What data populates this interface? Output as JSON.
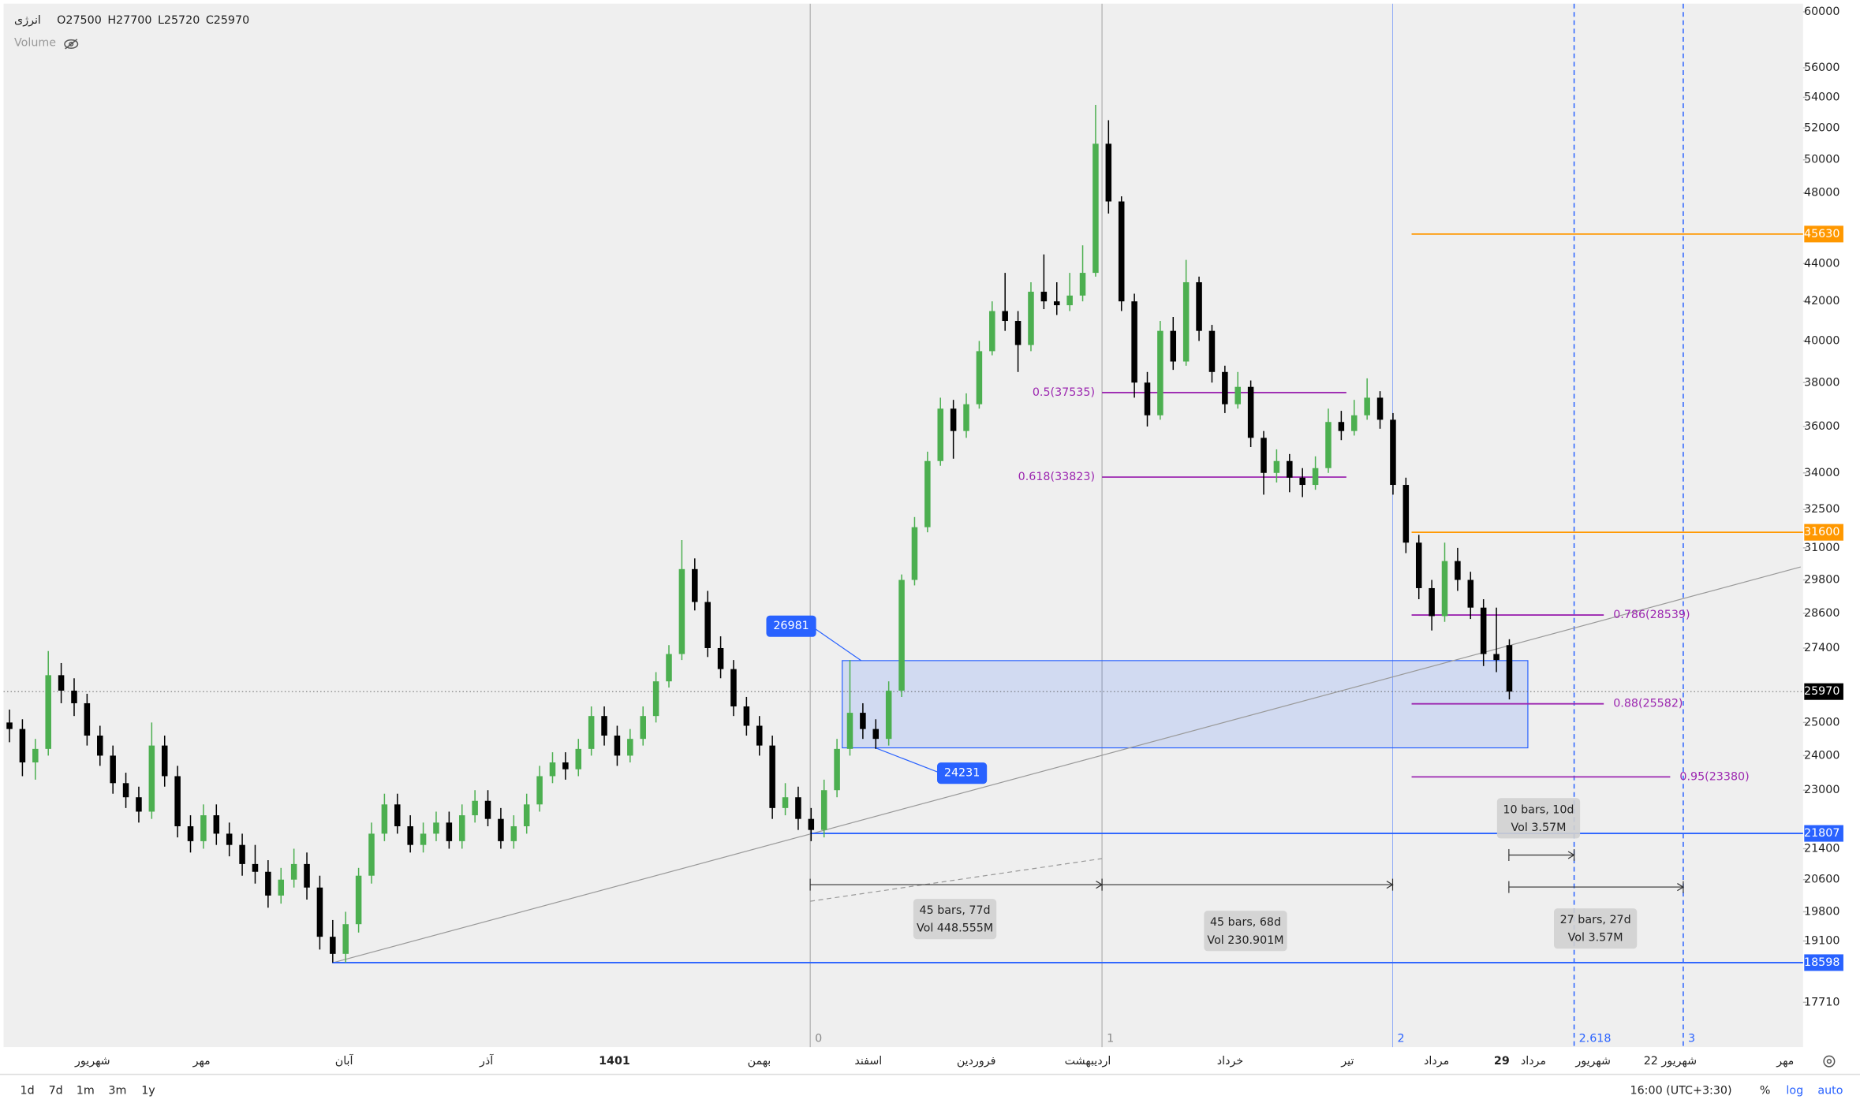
{
  "header": {
    "symbol": "انرژی",
    "ohlc": [
      "O27500",
      "H27700",
      "L25720",
      "C25970"
    ],
    "volume": "Volume"
  },
  "chart_data": {
    "type": "candlestick",
    "log_scale": true,
    "ylim": [
      16760,
      60600
    ],
    "yticks": [
      60000,
      56000,
      54000,
      52000,
      50000,
      48000,
      44000,
      42000,
      40000,
      38000,
      36000,
      34000,
      32500,
      31000,
      29800,
      28600,
      27400,
      25000,
      24000,
      23000,
      21400,
      20600,
      19800,
      19100,
      17710
    ],
    "up_color": "#4caf50",
    "down_color": "#000000",
    "candles": [
      [
        25000,
        25400,
        24400,
        24800
      ],
      [
        24800,
        25100,
        23400,
        23800
      ],
      [
        23800,
        24500,
        23300,
        24200
      ],
      [
        24200,
        27300,
        24000,
        26500
      ],
      [
        26500,
        26900,
        25600,
        26000
      ],
      [
        26000,
        26400,
        25200,
        25600
      ],
      [
        25600,
        25900,
        24300,
        24600
      ],
      [
        24600,
        24900,
        23700,
        24000
      ],
      [
        24000,
        24300,
        22900,
        23200
      ],
      [
        23200,
        23500,
        22500,
        22800
      ],
      [
        22800,
        23100,
        22100,
        22400
      ],
      [
        22400,
        25000,
        22200,
        24300
      ],
      [
        24300,
        24600,
        23100,
        23400
      ],
      [
        23400,
        23700,
        21700,
        22000
      ],
      [
        22000,
        22300,
        21300,
        21600
      ],
      [
        21600,
        22600,
        21400,
        22300
      ],
      [
        22300,
        22600,
        21500,
        21800
      ],
      [
        21800,
        22100,
        21200,
        21500
      ],
      [
        21500,
        21800,
        20700,
        21000
      ],
      [
        21000,
        21500,
        20500,
        20800
      ],
      [
        20800,
        21100,
        19900,
        20200
      ],
      [
        20200,
        20900,
        20000,
        20600
      ],
      [
        20600,
        21400,
        20400,
        21000
      ],
      [
        21000,
        21300,
        20100,
        20400
      ],
      [
        20400,
        20700,
        18900,
        19200
      ],
      [
        19200,
        19600,
        18600,
        18800
      ],
      [
        18800,
        19800,
        18600,
        19500
      ],
      [
        19500,
        20900,
        19300,
        20700
      ],
      [
        20700,
        22100,
        20500,
        21800
      ],
      [
        21800,
        22900,
        21600,
        22600
      ],
      [
        22600,
        22900,
        21800,
        22000
      ],
      [
        22000,
        22300,
        21300,
        21500
      ],
      [
        21500,
        22100,
        21300,
        21800
      ],
      [
        21800,
        22400,
        21600,
        22100
      ],
      [
        22100,
        22400,
        21400,
        21600
      ],
      [
        21600,
        22600,
        21400,
        22300
      ],
      [
        22300,
        23000,
        22100,
        22700
      ],
      [
        22700,
        23000,
        22000,
        22200
      ],
      [
        22200,
        22500,
        21400,
        21600
      ],
      [
        21600,
        22300,
        21400,
        22000
      ],
      [
        22000,
        22900,
        21800,
        22600
      ],
      [
        22600,
        23700,
        22400,
        23400
      ],
      [
        23400,
        24100,
        23200,
        23800
      ],
      [
        23800,
        24100,
        23300,
        23600
      ],
      [
        23600,
        24500,
        23400,
        24200
      ],
      [
        24200,
        25500,
        24000,
        25200
      ],
      [
        25200,
        25500,
        24300,
        24600
      ],
      [
        24600,
        24900,
        23700,
        24000
      ],
      [
        24000,
        24800,
        23800,
        24500
      ],
      [
        24500,
        25500,
        24300,
        25200
      ],
      [
        25200,
        26600,
        25000,
        26300
      ],
      [
        26300,
        27500,
        26100,
        27200
      ],
      [
        27200,
        31300,
        27000,
        30200
      ],
      [
        30200,
        30600,
        28700,
        29000
      ],
      [
        29000,
        29400,
        27100,
        27400
      ],
      [
        27400,
        27800,
        26400,
        26700
      ],
      [
        26700,
        27000,
        25200,
        25500
      ],
      [
        25500,
        25800,
        24600,
        24900
      ],
      [
        24900,
        25200,
        24000,
        24300
      ],
      [
        24300,
        24600,
        22200,
        22500
      ],
      [
        22500,
        23200,
        22300,
        22800
      ],
      [
        22800,
        23100,
        21900,
        22200
      ],
      [
        22200,
        22500,
        21600,
        21900
      ],
      [
        21900,
        23300,
        21700,
        23000
      ],
      [
        23000,
        24500,
        22800,
        24200
      ],
      [
        24200,
        27000,
        24000,
        25300
      ],
      [
        25300,
        25600,
        24500,
        24800
      ],
      [
        24800,
        25100,
        24200,
        24500
      ],
      [
        24500,
        26300,
        24300,
        26000
      ],
      [
        26000,
        30000,
        25800,
        29800
      ],
      [
        29800,
        32200,
        29600,
        31800
      ],
      [
        31800,
        34900,
        31600,
        34500
      ],
      [
        34500,
        37300,
        34300,
        36800
      ],
      [
        36800,
        37200,
        34600,
        35800
      ],
      [
        35800,
        37500,
        35500,
        37000
      ],
      [
        37000,
        40000,
        36800,
        39500
      ],
      [
        39500,
        42000,
        39300,
        41500
      ],
      [
        41500,
        43500,
        40500,
        41000
      ],
      [
        41000,
        41500,
        38500,
        39800
      ],
      [
        39800,
        43000,
        39500,
        42500
      ],
      [
        42500,
        44500,
        41600,
        42000
      ],
      [
        42000,
        43000,
        41300,
        41800
      ],
      [
        41800,
        43500,
        41500,
        42300
      ],
      [
        42300,
        45000,
        42000,
        43500
      ],
      [
        43500,
        53500,
        43300,
        51000
      ],
      [
        51000,
        52500,
        46800,
        47500
      ],
      [
        47500,
        47800,
        41500,
        42000
      ],
      [
        42000,
        42400,
        37300,
        38000
      ],
      [
        38000,
        38500,
        36000,
        36500
      ],
      [
        36500,
        41000,
        36300,
        40500
      ],
      [
        40500,
        41200,
        38600,
        39000
      ],
      [
        39000,
        44200,
        38800,
        43000
      ],
      [
        43000,
        43300,
        40000,
        40500
      ],
      [
        40500,
        40800,
        38000,
        38500
      ],
      [
        38500,
        38800,
        36600,
        37000
      ],
      [
        37000,
        38500,
        36800,
        37800
      ],
      [
        37800,
        38100,
        35100,
        35500
      ],
      [
        35500,
        35800,
        33100,
        34000
      ],
      [
        34000,
        35000,
        33600,
        34500
      ],
      [
        34500,
        34800,
        33200,
        33800
      ],
      [
        33800,
        34200,
        33000,
        33500
      ],
      [
        33500,
        34700,
        33300,
        34200
      ],
      [
        34200,
        36800,
        34000,
        36200
      ],
      [
        36200,
        36700,
        35400,
        35800
      ],
      [
        35800,
        37200,
        35600,
        36500
      ],
      [
        36500,
        38200,
        36300,
        37300
      ],
      [
        37300,
        37600,
        35900,
        36300
      ],
      [
        36300,
        36600,
        33100,
        33500
      ],
      [
        33500,
        33800,
        30800,
        31200
      ],
      [
        31200,
        31500,
        29100,
        29500
      ],
      [
        29500,
        29800,
        28000,
        28500
      ],
      [
        28500,
        31200,
        28300,
        30500
      ],
      [
        30500,
        31000,
        29400,
        29800
      ],
      [
        29800,
        30100,
        28400,
        28800
      ],
      [
        28800,
        29100,
        26800,
        27200
      ],
      [
        27200,
        28800,
        26600,
        27000
      ],
      [
        27500,
        27700,
        25720,
        25970
      ]
    ],
    "xlabels": [
      "شهریور",
      "مهر",
      "آبان",
      "آذر",
      "1401",
      "بهمن",
      "اسفند",
      "فروردین",
      "اردیبهشت",
      "خرداد",
      "تیر",
      "مرداد",
      "29",
      "مرداد",
      "شهریور",
      "22 شهریور",
      "مهر"
    ],
    "price_lines": [
      {
        "value": 45630,
        "color": "#ff9800"
      },
      {
        "value": 31600,
        "color": "#ff9800"
      },
      {
        "value": 21807,
        "color": "#2962ff"
      },
      {
        "value": 18598,
        "color": "#2962ff"
      }
    ],
    "current_price": 25970,
    "fib_levels": [
      {
        "label": "0.5(37535)",
        "value": 37535
      },
      {
        "label": "0.618(33823)",
        "value": 33823
      },
      {
        "label": "0.786(28539)",
        "value": 28539
      },
      {
        "label": "0.88(25582)",
        "value": 25582
      },
      {
        "label": "0.95(23380)",
        "value": 23380
      }
    ],
    "fib_color": "#9c27b0",
    "box": {
      "top": 26981,
      "bottom": 24231
    },
    "time_zones": [
      "0",
      "1",
      "2",
      "2.618",
      "3"
    ],
    "ranges": [
      {
        "bars": "45 bars, 77d",
        "vol": "Vol 448.555M"
      },
      {
        "bars": "45 bars, 68d",
        "vol": "Vol 230.901M"
      },
      {
        "bars": "10 bars, 10d",
        "vol": "Vol 3.57M"
      },
      {
        "bars": "27 bars, 27d",
        "vol": "Vol 3.57M"
      }
    ]
  },
  "toolbar": {
    "ranges": [
      "1d",
      "7d",
      "1m",
      "3m",
      "1y"
    ],
    "timezone": "16:00 (UTC+3:30)",
    "options": [
      "%",
      "log",
      "auto"
    ]
  }
}
